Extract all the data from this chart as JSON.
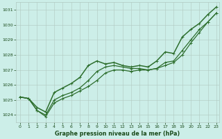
{
  "title": "Graphe pression niveau de la mer (hPa)",
  "bg_color": "#cceee8",
  "grid_color": "#b0c8c0",
  "line_color": "#2d6e2d",
  "text_color": "#1a4a1a",
  "xlim_min": -0.5,
  "xlim_max": 23.3,
  "ylim_min": 1023.5,
  "ylim_max": 1031.5,
  "yticks": [
    1024,
    1025,
    1026,
    1027,
    1028,
    1029,
    1030,
    1031
  ],
  "xticks": [
    0,
    1,
    2,
    3,
    4,
    5,
    6,
    7,
    8,
    9,
    10,
    11,
    12,
    13,
    14,
    15,
    16,
    17,
    18,
    19,
    20,
    21,
    22,
    23
  ],
  "s1_x": [
    0,
    1,
    2,
    3,
    4,
    5,
    6,
    7,
    8,
    9,
    10,
    11,
    12,
    13,
    14,
    15,
    16,
    17,
    18,
    19,
    20,
    21,
    22,
    23
  ],
  "s1_y": [
    1025.2,
    1025.1,
    1024.3,
    1023.9,
    1024.8,
    1025.1,
    1025.3,
    1025.6,
    1025.9,
    1026.3,
    1026.8,
    1027.0,
    1027.0,
    1026.9,
    1027.0,
    1027.0,
    1027.1,
    1027.3,
    1027.5,
    1028.0,
    1028.8,
    1029.5,
    1030.2,
    1030.8
  ],
  "s2_x": [
    0,
    1,
    2,
    3,
    4,
    5,
    6,
    7,
    8,
    9,
    10,
    11,
    12,
    13,
    14,
    15,
    16,
    17,
    18,
    19,
    20,
    21,
    22,
    23
  ],
  "s2_y": [
    1025.2,
    1025.1,
    1024.3,
    1024.0,
    1025.0,
    1025.3,
    1025.5,
    1025.8,
    1026.3,
    1026.9,
    1027.2,
    1027.3,
    1027.2,
    1027.1,
    1027.1,
    1027.0,
    1027.1,
    1027.5,
    1027.6,
    1028.3,
    1029.0,
    1029.7,
    1030.2,
    1030.8
  ],
  "s3_x": [
    0,
    1,
    2,
    3,
    4,
    5,
    6,
    7,
    8,
    9,
    10,
    11,
    12,
    13,
    14,
    15,
    16,
    17,
    18,
    19,
    20,
    21,
    22,
    23
  ],
  "s3_y": [
    1025.2,
    1025.1,
    1024.5,
    1024.2,
    1025.5,
    1025.8,
    1026.1,
    1026.5,
    1027.3,
    1027.6,
    1027.4,
    1027.5,
    1027.3,
    1027.2,
    1027.3,
    1027.2,
    1027.6,
    1028.2,
    1028.1,
    1029.2,
    1029.7,
    1030.1,
    1030.7,
    1031.2
  ],
  "xlabel_fontsize": 5.8,
  "tick_fontsize": 4.5,
  "lw1": 0.9,
  "lw2": 0.9,
  "lw3": 1.1
}
